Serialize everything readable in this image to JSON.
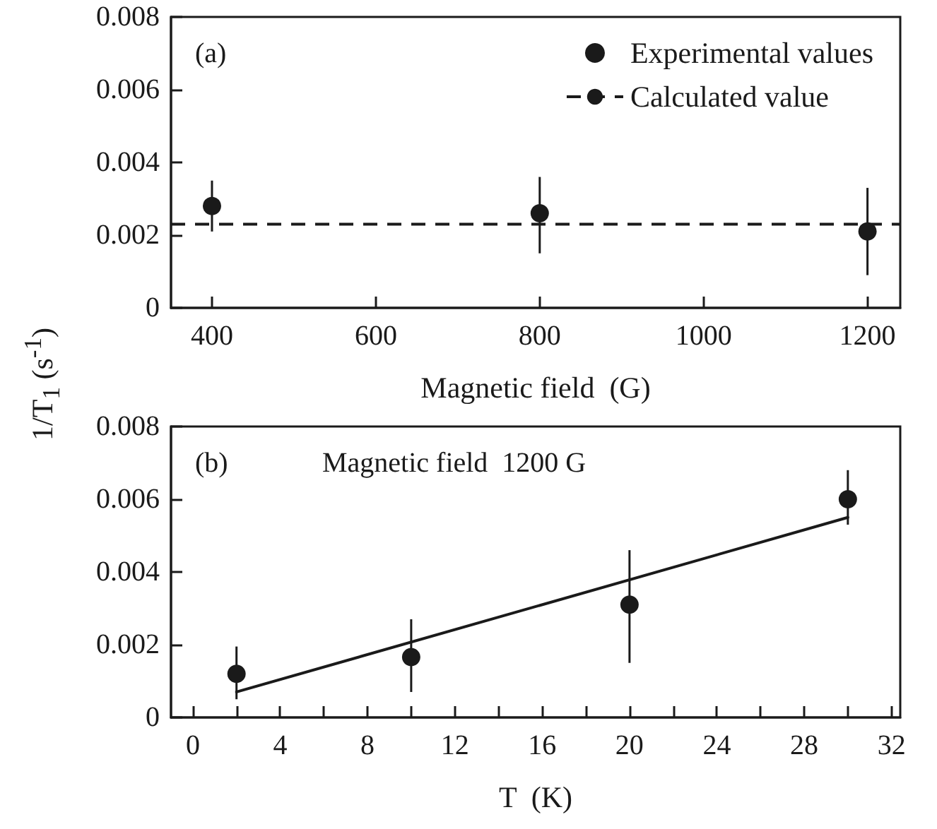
{
  "chart_data": [
    {
      "type": "scatter",
      "xlabel": "Magnetic field  (G)",
      "ylabel": "1/T$_{1}$  (s$^{-1}$)",
      "annotations": [
        "(a)"
      ],
      "x": [
        400,
        800,
        1200
      ],
      "series": [
        {
          "name": "Experimental values",
          "color": "#1a1a1a",
          "values": [
            0.0028,
            0.0026,
            0.0021
          ],
          "errors": [
            [
              0.0021,
              0.0035
            ],
            [
              0.0015,
              0.0036
            ],
            [
              0.0009,
              0.0033
            ]
          ]
        }
      ],
      "ref_lines": [
        {
          "axis": "y",
          "value": 0.0023,
          "label": "Calculated value",
          "color": "#1a1a1a",
          "line_style": "dashed"
        }
      ],
      "xlim": [
        350,
        1240
      ],
      "xticks": [
        400,
        600,
        800,
        1000,
        1200
      ],
      "ylim": [
        0,
        0.008
      ],
      "yticks": [
        0,
        0.002,
        0.004,
        0.006,
        0.008
      ],
      "marker": "circle",
      "legend": "top right"
    },
    {
      "type": "scatter",
      "xlabel": "T  (K)",
      "annotations": [
        "(b)",
        "Magnetic field  1200 G"
      ],
      "x": [
        2,
        10,
        20,
        30
      ],
      "series": [
        {
          "color": "#1a1a1a",
          "values": [
            0.0012,
            0.00166,
            0.0031,
            0.006
          ],
          "errors": [
            [
              0.0005,
              0.00195
            ],
            [
              0.0007,
              0.0027
            ],
            [
              0.0015,
              0.0046
            ],
            [
              0.0053,
              0.0068
            ]
          ]
        },
        {
          "type": "line",
          "color": "#1a1a1a",
          "x": [
            2,
            30
          ],
          "values": [
            0.0007,
            0.0055
          ],
          "marker": "none"
        }
      ],
      "xlim": [
        -1,
        32.4
      ],
      "xticks": [
        0,
        {
          "value": 2,
          "label": null
        },
        4,
        {
          "value": 6,
          "label": null
        },
        8,
        {
          "value": 10,
          "label": null
        },
        12,
        {
          "value": 14,
          "label": null
        },
        16,
        {
          "value": 18,
          "label": null
        },
        20,
        {
          "value": 22,
          "label": null
        },
        24,
        {
          "value": 26,
          "label": null
        },
        28,
        {
          "value": 30,
          "label": null
        },
        32
      ],
      "ylim": [
        0,
        0.008
      ],
      "yticks": [
        0,
        0.002,
        0.004,
        0.006,
        0.008
      ],
      "marker": "circle"
    }
  ]
}
